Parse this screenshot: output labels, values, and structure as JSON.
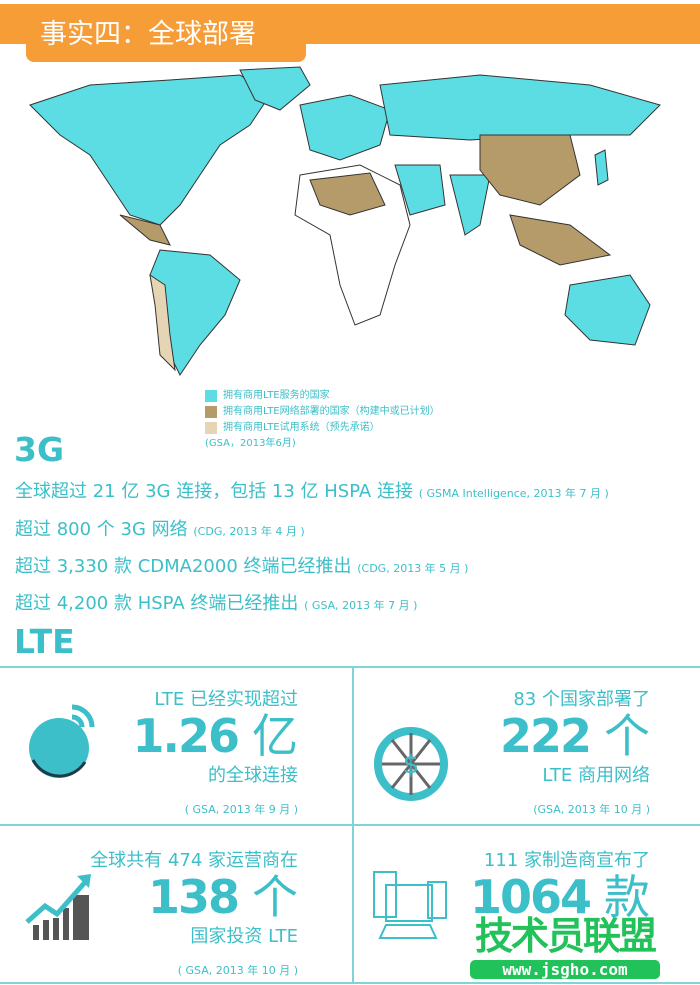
{
  "header": {
    "title": "事实四：全球部署"
  },
  "colors": {
    "accent": "#3cbfc8",
    "orange": "#f69d38",
    "lte_commercial": "#5cdde3",
    "lte_deploying": "#b59b6a",
    "lte_trial": "#e6d5b5"
  },
  "legend": {
    "items": [
      {
        "label": "拥有商用LTE服务的国家",
        "color": "#5cdde3"
      },
      {
        "label": "拥有商用LTE网络部署的国家（构建中或已计划）",
        "color": "#b59b6a"
      },
      {
        "label": "拥有商用LTE试用系统（预先承诺）",
        "color": "#e6d5b5"
      }
    ],
    "source": "(GSA，2013年6月)"
  },
  "g3": {
    "heading": "3G",
    "lines": [
      {
        "text": "全球超过 21 亿 3G 连接，包括 13 亿 HSPA 连接",
        "source": "( GSMA Intelligence, 2013 年 7 月 )"
      },
      {
        "text": "超过 800 个 3G 网络",
        "source": "(CDG, 2013 年 4 月 )"
      },
      {
        "text": "超过 3,330 款 CDMA2000 终端已经推出",
        "source": "(CDG, 2013 年 5 月 )"
      },
      {
        "text": "超过 4,200 款 HSPA 终端已经推出",
        "source": "( GSA, 2013 年 7 月 )"
      }
    ]
  },
  "lte": {
    "heading": "LTE",
    "cells": [
      {
        "pre": "LTE 已经实现超过",
        "number": "1.26",
        "unit": "亿",
        "post": "的全球连接",
        "source": "( GSA, 2013 年 9 月 )",
        "icon": "globe-wifi-icon"
      },
      {
        "pre": "83 个国家部署了",
        "number": "222",
        "unit": "个",
        "post": "LTE 商用网络",
        "source": "(GSA, 2013 年 10 月 )",
        "icon": "globe-dollar-icon"
      },
      {
        "pre": "全球共有 474 家运营商在",
        "number": "138",
        "unit": "个",
        "post": "国家投资 LTE",
        "source": "( GSA, 2013 年 10 月 )",
        "icon": "growth-chart-icon"
      },
      {
        "pre": "111 家制造商宣布了",
        "number": "1064",
        "unit": "款",
        "post": "",
        "source": "",
        "icon": "devices-icon"
      }
    ]
  },
  "watermark": {
    "text": "技术员联盟",
    "url": "www.jsgho.com"
  }
}
